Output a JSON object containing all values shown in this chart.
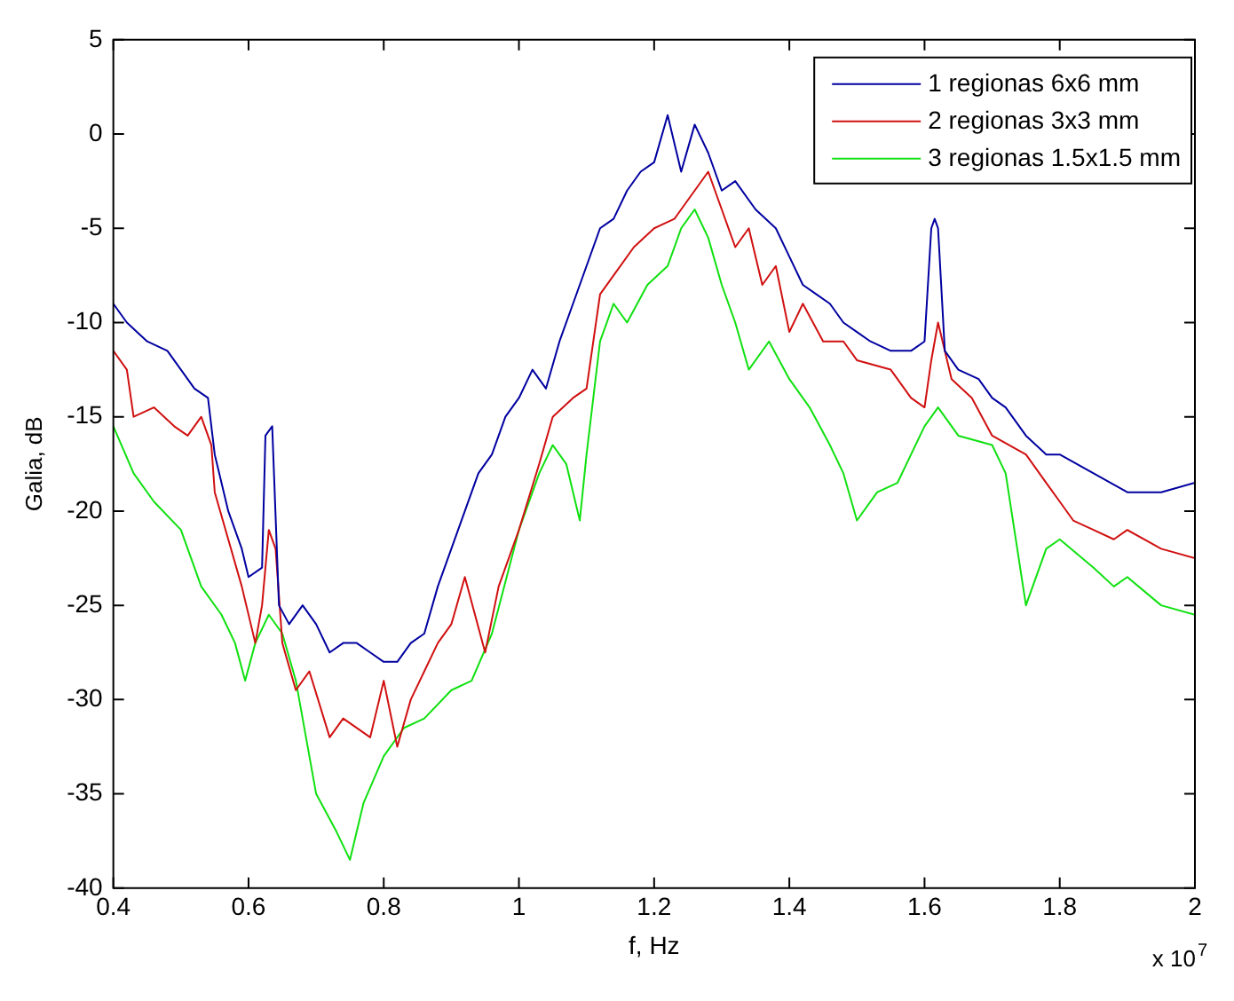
{
  "chart_data": {
    "type": "line",
    "xlabel": "f, Hz",
    "ylabel": "Galia, dB",
    "annotations": [
      "x 10$^{7}$"
    ],
    "xlim": [
      0.4,
      2
    ],
    "xticks": [
      0.4,
      0.6,
      0.8,
      1,
      1.2,
      1.4,
      1.6,
      1.8,
      2
    ],
    "ylim": [
      -40,
      5
    ],
    "yticks": [
      -40,
      -35,
      -30,
      -25,
      -20,
      -15,
      -10,
      -5,
      0,
      5
    ],
    "grid": false,
    "legend": "top right",
    "marker": "none",
    "line_style": "solid",
    "series": [
      {
        "name": "1 regionas 6x6 mm",
        "color": "#0000a0",
        "x": [
          0.4,
          0.42,
          0.45,
          0.48,
          0.5,
          0.52,
          0.54,
          0.55,
          0.57,
          0.59,
          0.6,
          0.62,
          0.625,
          0.635,
          0.645,
          0.66,
          0.68,
          0.7,
          0.72,
          0.74,
          0.76,
          0.78,
          0.8,
          0.82,
          0.84,
          0.86,
          0.88,
          0.9,
          0.92,
          0.94,
          0.96,
          0.98,
          1.0,
          1.02,
          1.04,
          1.06,
          1.08,
          1.1,
          1.12,
          1.14,
          1.16,
          1.18,
          1.2,
          1.22,
          1.24,
          1.26,
          1.28,
          1.3,
          1.32,
          1.35,
          1.38,
          1.4,
          1.42,
          1.44,
          1.46,
          1.48,
          1.5,
          1.52,
          1.55,
          1.58,
          1.6,
          1.61,
          1.615,
          1.62,
          1.63,
          1.65,
          1.68,
          1.7,
          1.72,
          1.75,
          1.78,
          1.8,
          1.85,
          1.9,
          1.95,
          2.0
        ],
        "values": [
          -9,
          -10,
          -11,
          -11.5,
          -12.5,
          -13.5,
          -14,
          -17,
          -20,
          -22,
          -23.5,
          -23,
          -16,
          -15.5,
          -25,
          -26,
          -25,
          -26,
          -27.5,
          -27,
          -27,
          -27.5,
          -28,
          -28,
          -27,
          -26.5,
          -24,
          -22,
          -20,
          -18,
          -17,
          -15,
          -14,
          -12.5,
          -13.5,
          -11,
          -9,
          -7,
          -5,
          -4.5,
          -3,
          -2,
          -1.5,
          1,
          -2,
          0.5,
          -1,
          -3,
          -2.5,
          -4,
          -5,
          -6.5,
          -8,
          -8.5,
          -9,
          -10,
          -10.5,
          -11,
          -11.5,
          -11.5,
          -11,
          -5,
          -4.5,
          -5,
          -11.5,
          -12.5,
          -13,
          -14,
          -14.5,
          -16,
          -17,
          -17,
          -18,
          -19,
          -19,
          -18.5
        ]
      },
      {
        "name": "2 regionas 3x3 mm",
        "color": "#d01010",
        "x": [
          0.4,
          0.42,
          0.43,
          0.46,
          0.49,
          0.51,
          0.53,
          0.545,
          0.55,
          0.57,
          0.59,
          0.61,
          0.62,
          0.63,
          0.64,
          0.65,
          0.67,
          0.69,
          0.72,
          0.74,
          0.78,
          0.8,
          0.82,
          0.84,
          0.86,
          0.88,
          0.9,
          0.92,
          0.95,
          0.97,
          1.0,
          1.03,
          1.05,
          1.08,
          1.1,
          1.12,
          1.14,
          1.17,
          1.2,
          1.23,
          1.26,
          1.28,
          1.3,
          1.32,
          1.34,
          1.36,
          1.38,
          1.4,
          1.42,
          1.45,
          1.48,
          1.5,
          1.55,
          1.58,
          1.6,
          1.61,
          1.62,
          1.64,
          1.67,
          1.7,
          1.75,
          1.78,
          1.8,
          1.82,
          1.85,
          1.88,
          1.9,
          1.95,
          2.0
        ],
        "values": [
          -11.5,
          -12.5,
          -15,
          -14.5,
          -15.5,
          -16,
          -15,
          -16.5,
          -19,
          -21.5,
          -24,
          -27,
          -25,
          -21,
          -22,
          -27,
          -29.5,
          -28.5,
          -32,
          -31,
          -32,
          -29,
          -32.5,
          -30,
          -28.5,
          -27,
          -26,
          -23.5,
          -27.5,
          -24,
          -21,
          -17.5,
          -15,
          -14,
          -13.5,
          -8.5,
          -7.5,
          -6,
          -5,
          -4.5,
          -3,
          -2,
          -4,
          -6,
          -5,
          -8,
          -7,
          -10.5,
          -9,
          -11,
          -11,
          -12,
          -12.5,
          -14,
          -14.5,
          -12,
          -10,
          -13,
          -14,
          -16,
          -17,
          -18.5,
          -19.5,
          -20.5,
          -21,
          -21.5,
          -21,
          -22,
          -22.5
        ]
      },
      {
        "name": "3 regionas 1.5x1.5 mm",
        "color": "#10e010",
        "x": [
          0.4,
          0.43,
          0.46,
          0.5,
          0.53,
          0.56,
          0.58,
          0.595,
          0.61,
          0.63,
          0.65,
          0.67,
          0.7,
          0.73,
          0.75,
          0.77,
          0.8,
          0.83,
          0.86,
          0.9,
          0.93,
          0.96,
          1.0,
          1.03,
          1.05,
          1.07,
          1.09,
          1.1,
          1.12,
          1.14,
          1.16,
          1.19,
          1.22,
          1.24,
          1.26,
          1.28,
          1.3,
          1.32,
          1.34,
          1.37,
          1.4,
          1.43,
          1.46,
          1.48,
          1.5,
          1.53,
          1.56,
          1.6,
          1.62,
          1.65,
          1.7,
          1.72,
          1.75,
          1.77,
          1.78,
          1.8,
          1.85,
          1.88,
          1.9,
          1.95,
          2.0
        ],
        "values": [
          -15.5,
          -18,
          -19.5,
          -21,
          -24,
          -25.5,
          -27,
          -29,
          -27,
          -25.5,
          -26.5,
          -29,
          -35,
          -37,
          -38.5,
          -35.5,
          -33,
          -31.5,
          -31,
          -29.5,
          -29,
          -26.5,
          -21,
          -18,
          -16.5,
          -17.5,
          -20.5,
          -17,
          -11,
          -9,
          -10,
          -8,
          -7,
          -5,
          -4,
          -5.5,
          -8,
          -10,
          -12.5,
          -11,
          -13,
          -14.5,
          -16.5,
          -18,
          -20.5,
          -19,
          -18.5,
          -15.5,
          -14.5,
          -16,
          -16.5,
          -18,
          -25,
          -23,
          -22,
          -21.5,
          -23,
          -24,
          -23.5,
          -25,
          -25.5
        ]
      }
    ]
  }
}
